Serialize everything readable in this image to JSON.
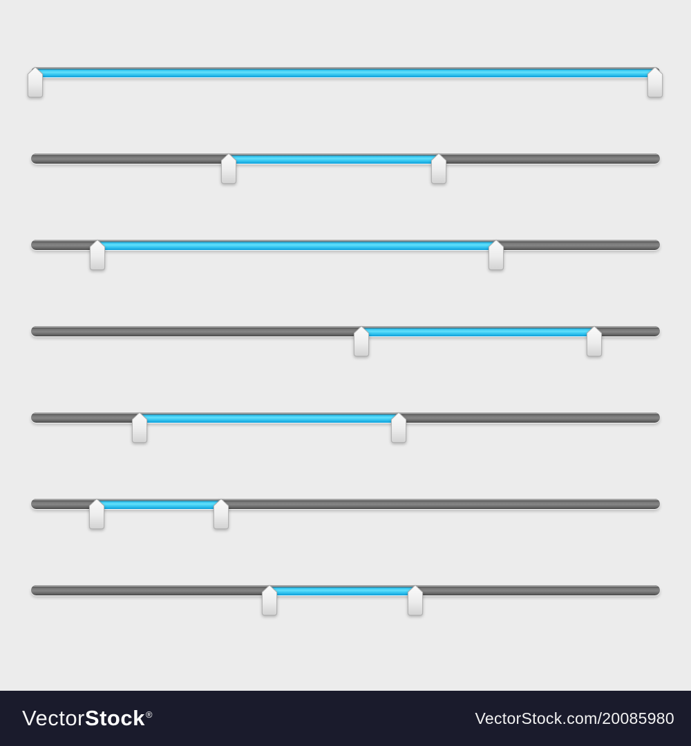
{
  "page": {
    "background_color": "#ececec",
    "slider_count": 7
  },
  "slider_style": {
    "fill_color": "#3ac9f3",
    "fill_color_dark": "#0f97cf",
    "track_color": "#6e6e6e",
    "track_bevel_color": "#ababab",
    "handle_color": "#ececec",
    "handle_border_color": "#aeaeae"
  },
  "sliders": [
    {
      "id": 1,
      "from_pct": 0.7,
      "to_pct": 99.2
    },
    {
      "id": 2,
      "from_pct": 31.4,
      "to_pct": 64.8
    },
    {
      "id": 3,
      "from_pct": 10.5,
      "to_pct": 74.0
    },
    {
      "id": 4,
      "from_pct": 52.5,
      "to_pct": 89.6
    },
    {
      "id": 5,
      "from_pct": 17.3,
      "to_pct": 58.5
    },
    {
      "id": 6,
      "from_pct": 10.4,
      "to_pct": 30.2
    },
    {
      "id": 7,
      "from_pct": 37.9,
      "to_pct": 61.1
    }
  ],
  "watermark_bar": {
    "bar_color": "#1a1b2c",
    "brand_light": "Vector",
    "brand_bold": "Stock",
    "registered_mark": "®",
    "attribution": "VectorStock.com/20085980"
  }
}
